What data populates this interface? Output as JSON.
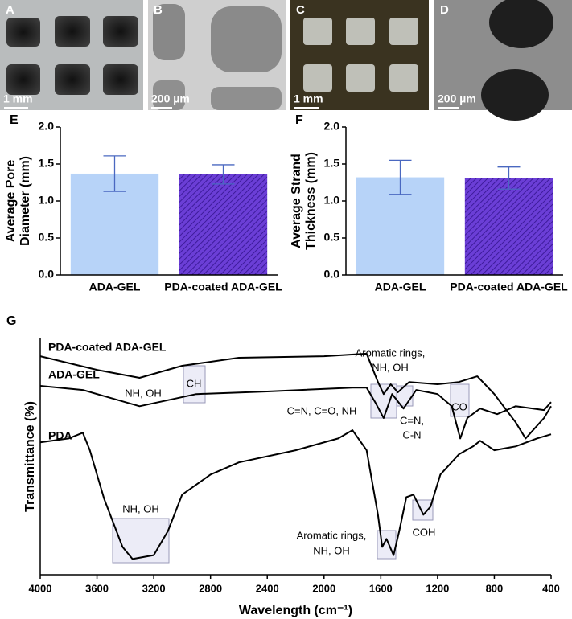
{
  "images": [
    {
      "label": "A",
      "scale_bar": "1 mm"
    },
    {
      "label": "B",
      "scale_bar": "200 µm"
    },
    {
      "label": "C",
      "scale_bar": "1 mm"
    },
    {
      "label": "D",
      "scale_bar": "200 µm"
    }
  ],
  "chart_data": [
    {
      "type": "bar",
      "label": "E",
      "y_label": "Average Pore Diameter (mm)",
      "categories": [
        "ADA-GEL",
        "PDA-coated ADA-GEL"
      ],
      "values": [
        1.37,
        1.36
      ],
      "errors": [
        0.24,
        0.13
      ],
      "colors": [
        "#b7d3f8",
        "#6b3ed6"
      ],
      "hatch": [
        false,
        true
      ],
      "error_color": "#4a68c0",
      "ylim": [
        0,
        2
      ],
      "yticks": [
        {
          "value": 0,
          "label": "0.0"
        },
        0.5,
        {
          "value": 1,
          "label": "1.0"
        },
        1.5,
        {
          "value": 2,
          "label": "2.0"
        }
      ]
    },
    {
      "type": "bar",
      "label": "F",
      "y_label": "Average Strand Thickness (mm)",
      "categories": [
        "ADA-GEL",
        "PDA-coated ADA-GEL"
      ],
      "values": [
        1.32,
        1.31
      ],
      "errors": [
        0.23,
        0.15
      ],
      "colors": [
        "#b7d3f8",
        "#6b3ed6"
      ],
      "hatch": [
        false,
        true
      ],
      "error_color": "#4a68c0",
      "ylim": [
        0,
        2
      ],
      "yticks": [
        {
          "value": 0,
          "label": "0.0"
        },
        0.5,
        {
          "value": 1,
          "label": "1.0"
        },
        1.5,
        {
          "value": 2,
          "label": "2.0"
        }
      ]
    },
    {
      "type": "line",
      "label": "G",
      "x_label": "Wavelength (cm⁻¹)",
      "y_label": "Transmittance (%)",
      "xlim": [
        4000,
        400
      ],
      "xticks": [
        4000,
        3600,
        3200,
        2800,
        2400,
        2000,
        1600,
        1200,
        800,
        400
      ],
      "ylim": [
        8,
        100
      ],
      "series": [
        {
          "name": "PDA-coated ADA-GEL",
          "color": "#000000",
          "x": [
            4000,
            3600,
            3300,
            3000,
            2600,
            2000,
            1700,
            1620,
            1580,
            1530,
            1480,
            1400,
            1200,
            1050,
            920,
            800,
            650,
            580,
            450,
            400
          ],
          "values": [
            92.8,
            87.5,
            84.4,
            89.1,
            92.2,
            92.8,
            93.8,
            82.8,
            78.1,
            81.9,
            78.8,
            82.8,
            81.9,
            82.8,
            85,
            78.1,
            67.2,
            60.9,
            68.8,
            73.4
          ]
        },
        {
          "name": "ADA-GEL",
          "color": "#000000",
          "x": [
            4000,
            3700,
            3300,
            2900,
            2400,
            1800,
            1700,
            1640,
            1580,
            1520,
            1440,
            1350,
            1200,
            1100,
            1040,
            990,
            900,
            780,
            650,
            450,
            400
          ],
          "values": [
            81.3,
            79.7,
            73.4,
            78.1,
            79.1,
            80.6,
            80.6,
            75,
            68.8,
            78.1,
            72.5,
            79.7,
            78.1,
            73.4,
            60.9,
            68.8,
            72.5,
            70.3,
            73.4,
            71.9,
            75
          ]
        },
        {
          "name": "PDA",
          "color": "#000000",
          "x": [
            4000,
            3800,
            3700,
            3650,
            3550,
            3420,
            3350,
            3200,
            3100,
            3000,
            2800,
            2600,
            2200,
            1900,
            1800,
            1700,
            1620,
            1590,
            1560,
            1510,
            1470,
            1420,
            1370,
            1300,
            1250,
            1180,
            1050,
            950,
            900,
            800,
            650,
            500,
            400
          ],
          "values": [
            59.4,
            60.9,
            63.1,
            56.3,
            37.5,
            18.8,
            14.1,
            15.6,
            25,
            39.1,
            46.9,
            51.6,
            56.3,
            60.9,
            64.1,
            56.3,
            31.3,
            18.8,
            21.9,
            15.6,
            25,
            38.1,
            39.1,
            31.3,
            34.4,
            46.9,
            54.7,
            57.8,
            60,
            56.3,
            57.8,
            60.9,
            62.5
          ]
        }
      ],
      "annotations": [
        "CH",
        "NH, OH",
        "Aromatic rings,",
        "NH, OH",
        "C=N, C=O, NH",
        "C=N,",
        "C-N",
        "CO",
        "NH, OH",
        "Aromatic rings,",
        "NH, OH",
        "COH"
      ]
    }
  ]
}
